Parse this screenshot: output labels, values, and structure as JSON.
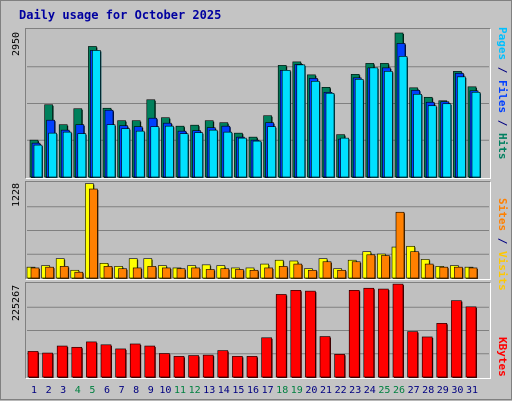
{
  "title": "Daily usage for October 2025",
  "colors": {
    "hits": "#00805c",
    "files": "#0040ff",
    "pages": "#00e0ff",
    "visits": "#ffff00",
    "sites": "#ff8000",
    "kbytes": "#ff0000",
    "weekend": "#008040",
    "weekday": "#000080"
  },
  "chart_data": [
    {
      "type": "bar",
      "title": "Daily usage for October 2025",
      "y_max_label": "2950",
      "ylim": [
        0,
        2950
      ],
      "legend": [
        "Pages",
        "Files",
        "Hits"
      ],
      "grid": true,
      "categories": [
        "1",
        "2",
        "3",
        "4",
        "5",
        "6",
        "7",
        "8",
        "9",
        "10",
        "11",
        "12",
        "13",
        "14",
        "15",
        "16",
        "17",
        "18",
        "19",
        "20",
        "21",
        "22",
        "23",
        "24",
        "25",
        "26",
        "27",
        "28",
        "29",
        "30",
        "31"
      ],
      "series": [
        {
          "name": "Hits",
          "values": [
            740,
            1450,
            1050,
            1370,
            2620,
            1380,
            1130,
            1130,
            1550,
            1190,
            1020,
            1040,
            1130,
            1090,
            880,
            800,
            1230,
            2240,
            2310,
            2050,
            1800,
            850,
            2060,
            2280,
            2280,
            2890,
            1790,
            1600,
            1530,
            2120,
            1810
          ]
        },
        {
          "name": "Files",
          "values": [
            680,
            1140,
            940,
            1050,
            2540,
            1340,
            1030,
            1010,
            1180,
            1080,
            920,
            930,
            990,
            1020,
            800,
            740,
            1090,
            2140,
            2260,
            1980,
            1700,
            760,
            1990,
            2190,
            2190,
            2680,
            1740,
            1500,
            1510,
            2080,
            1730
          ]
        },
        {
          "name": "Pages",
          "values": [
            640,
            880,
            900,
            870,
            2540,
            1050,
            970,
            920,
            1010,
            1020,
            870,
            890,
            940,
            900,
            780,
            720,
            1010,
            2140,
            2250,
            1920,
            1680,
            780,
            1960,
            2190,
            2120,
            2420,
            1660,
            1430,
            1470,
            2010,
            1700
          ]
        }
      ]
    },
    {
      "type": "bar",
      "y_max_label": "1228",
      "ylim": [
        0,
        1228
      ],
      "legend": [
        "Sites",
        "Visits"
      ],
      "grid": true,
      "categories": [
        "1",
        "2",
        "3",
        "4",
        "5",
        "6",
        "7",
        "8",
        "9",
        "10",
        "11",
        "12",
        "13",
        "14",
        "15",
        "16",
        "17",
        "18",
        "19",
        "20",
        "21",
        "22",
        "23",
        "24",
        "25",
        "26",
        "27",
        "28",
        "29",
        "30",
        "31"
      ],
      "series": [
        {
          "name": "Visits",
          "values": [
            140,
            160,
            250,
            100,
            1220,
            190,
            150,
            250,
            250,
            160,
            130,
            160,
            170,
            160,
            130,
            130,
            180,
            230,
            220,
            120,
            250,
            120,
            230,
            340,
            310,
            400,
            410,
            240,
            150,
            160,
            140
          ]
        },
        {
          "name": "Sites",
          "values": [
            130,
            140,
            150,
            75,
            1150,
            150,
            120,
            130,
            150,
            130,
            120,
            130,
            110,
            120,
            110,
            100,
            130,
            150,
            180,
            100,
            210,
            100,
            210,
            300,
            290,
            850,
            340,
            180,
            140,
            140,
            130
          ]
        }
      ]
    },
    {
      "type": "bar",
      "y_max_label": "225267",
      "ylim": [
        0,
        225267
      ],
      "legend": [
        "KBytes"
      ],
      "grid": true,
      "categories": [
        "1",
        "2",
        "3",
        "4",
        "5",
        "6",
        "7",
        "8",
        "9",
        "10",
        "11",
        "12",
        "13",
        "14",
        "15",
        "16",
        "17",
        "18",
        "19",
        "20",
        "21",
        "22",
        "23",
        "24",
        "25",
        "26",
        "27",
        "28",
        "29",
        "30",
        "31"
      ],
      "series": [
        {
          "name": "KBytes",
          "values": [
            62000,
            58000,
            75000,
            72000,
            85000,
            78000,
            68000,
            80000,
            75000,
            57000,
            50000,
            52000,
            53000,
            64000,
            50000,
            50000,
            95000,
            200000,
            210000,
            208000,
            98000,
            55000,
            210000,
            215000,
            213000,
            225000,
            110000,
            97000,
            130000,
            185000,
            170000
          ]
        }
      ]
    }
  ]
}
